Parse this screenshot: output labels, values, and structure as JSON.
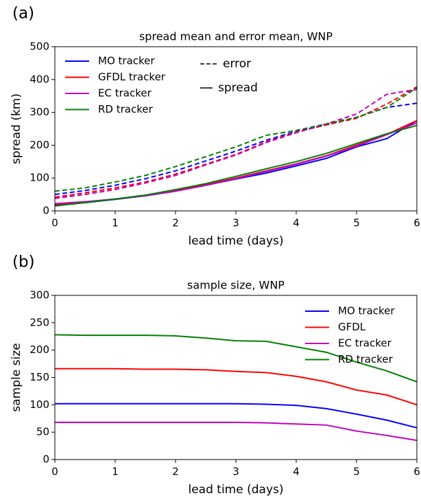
{
  "chart_data": [
    {
      "type": "line",
      "panel_label": "(a)",
      "title": "spread mean and error mean, WNP",
      "xlabel": "lead time (days)",
      "ylabel": "spread (km)",
      "x": [
        0,
        0.5,
        1,
        1.5,
        2,
        2.5,
        3,
        3.5,
        4,
        4.5,
        5,
        5.5,
        6
      ],
      "xlim": [
        0,
        6
      ],
      "xticks": [
        0,
        1,
        2,
        3,
        4,
        5,
        6
      ],
      "ylim": [
        0,
        500
      ],
      "yticks": [
        0,
        100,
        200,
        300,
        400,
        500
      ],
      "legend": "upper left",
      "annotations": [
        "error",
        "spread"
      ],
      "series": [
        {
          "name": "MO tracker",
          "color": "#0000ff",
          "spread": [
            18,
            25,
            35,
            46,
            60,
            78,
            97,
            115,
            137,
            160,
            195,
            220,
            275
          ],
          "error": [
            50,
            62,
            78,
            98,
            122,
            152,
            182,
            215,
            242,
            262,
            285,
            315,
            328
          ]
        },
        {
          "name": "GFDL tracker",
          "color": "#ff0000",
          "spread": [
            20,
            27,
            36,
            48,
            62,
            80,
            100,
            122,
            143,
            168,
            200,
            233,
            275
          ],
          "error": [
            42,
            55,
            70,
            88,
            112,
            142,
            172,
            210,
            240,
            262,
            282,
            325,
            378
          ]
        },
        {
          "name": "EC tracker",
          "color": "#bf00bf",
          "spread": [
            22,
            28,
            36,
            46,
            60,
            78,
            98,
            120,
            142,
            167,
            197,
            232,
            268
          ],
          "error": [
            38,
            50,
            65,
            85,
            108,
            140,
            170,
            208,
            238,
            265,
            295,
            355,
            370
          ]
        },
        {
          "name": "RD tracker",
          "color": "#008000",
          "spread": [
            15,
            25,
            36,
            48,
            65,
            83,
            105,
            128,
            150,
            175,
            205,
            235,
            260
          ],
          "error": [
            60,
            70,
            88,
            108,
            135,
            165,
            195,
            230,
            245,
            265,
            285,
            315,
            375
          ]
        }
      ]
    },
    {
      "type": "line",
      "panel_label": "(b)",
      "title": "sample size, WNP",
      "xlabel": "lead time (days)",
      "ylabel": "sample size",
      "x": [
        0,
        0.5,
        1,
        1.5,
        2,
        2.5,
        3,
        3.5,
        4,
        4.5,
        5,
        5.5,
        6
      ],
      "xlim": [
        0,
        6
      ],
      "xticks": [
        0,
        1,
        2,
        3,
        4,
        5,
        6
      ],
      "ylim": [
        0,
        300
      ],
      "yticks": [
        0,
        50,
        100,
        150,
        200,
        250,
        300
      ],
      "legend": "upper right",
      "series": [
        {
          "name": "MO tracker",
          "color": "#0000ff",
          "values": [
            102,
            102,
            102,
            102,
            102,
            102,
            102,
            101,
            99,
            93,
            83,
            72,
            58
          ]
        },
        {
          "name": "GFDL",
          "color": "#ff0000",
          "values": [
            166,
            166,
            166,
            165,
            165,
            164,
            161,
            159,
            152,
            142,
            127,
            118,
            100
          ]
        },
        {
          "name": "EC tracker",
          "color": "#bf00bf",
          "values": [
            68,
            68,
            68,
            68,
            68,
            68,
            68,
            67,
            65,
            63,
            52,
            44,
            35
          ]
        },
        {
          "name": "RD tracker",
          "color": "#008000",
          "values": [
            228,
            227,
            227,
            227,
            226,
            222,
            217,
            216,
            206,
            196,
            178,
            162,
            142
          ]
        }
      ]
    }
  ]
}
